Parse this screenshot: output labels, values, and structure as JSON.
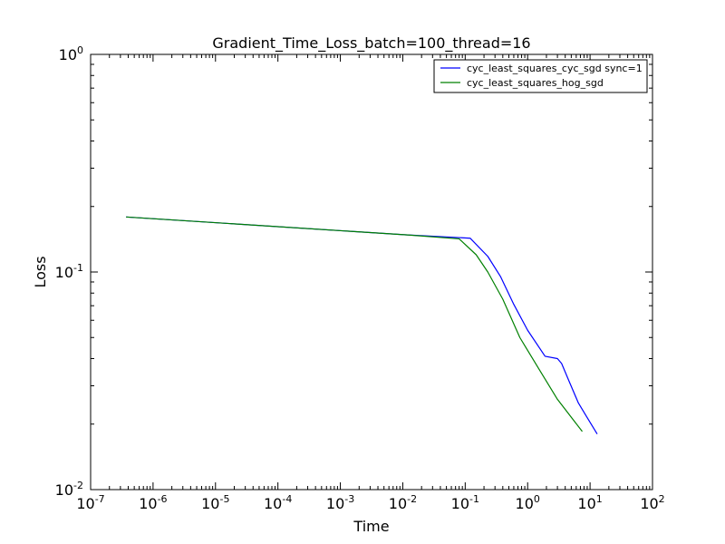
{
  "chart_data": {
    "type": "line",
    "title": "Gradient_Time_Loss_batch=100_thread=16",
    "xlabel": "Time",
    "ylabel": "Loss",
    "xscale": "log",
    "yscale": "log",
    "xlim": [
      1e-07,
      100
    ],
    "ylim": [
      0.01,
      1
    ],
    "grid": false,
    "legend_position": "top-right",
    "x_tick_labels": [
      {
        "value": 1e-07,
        "base": "10",
        "exp": "-7"
      },
      {
        "value": 1e-06,
        "base": "10",
        "exp": "-6"
      },
      {
        "value": 1e-05,
        "base": "10",
        "exp": "-5"
      },
      {
        "value": 0.0001,
        "base": "10",
        "exp": "-4"
      },
      {
        "value": 0.001,
        "base": "10",
        "exp": "-3"
      },
      {
        "value": 0.01,
        "base": "10",
        "exp": "-2"
      },
      {
        "value": 0.1,
        "base": "10",
        "exp": "-1"
      },
      {
        "value": 1,
        "base": "10",
        "exp": "0"
      },
      {
        "value": 10,
        "base": "10",
        "exp": "1"
      },
      {
        "value": 100,
        "base": "10",
        "exp": "2"
      }
    ],
    "y_tick_labels": [
      {
        "value": 0.01,
        "base": "10",
        "exp": "-2"
      },
      {
        "value": 0.1,
        "base": "10",
        "exp": "-1"
      },
      {
        "value": 1,
        "base": "10",
        "exp": "0"
      }
    ],
    "series": [
      {
        "name": "cyc_least_squares_cyc_sgd sync=1",
        "color": "#0000ff",
        "points": [
          [
            3.7e-07,
            0.179
          ],
          [
            0.012,
            0.148
          ],
          [
            0.12,
            0.143
          ],
          [
            0.23,
            0.118
          ],
          [
            0.37,
            0.095
          ],
          [
            0.6,
            0.071
          ],
          [
            1.0,
            0.054
          ],
          [
            1.9,
            0.041
          ],
          [
            3.0,
            0.04
          ],
          [
            3.5,
            0.038
          ],
          [
            4.5,
            0.032
          ],
          [
            6.5,
            0.025
          ],
          [
            8.5,
            0.022
          ],
          [
            13.0,
            0.018
          ]
        ]
      },
      {
        "name": "cyc_least_squares_hog_sgd",
        "color": "#008000",
        "points": [
          [
            3.7e-07,
            0.179
          ],
          [
            0.012,
            0.148
          ],
          [
            0.08,
            0.142
          ],
          [
            0.15,
            0.12
          ],
          [
            0.23,
            0.1
          ],
          [
            0.4,
            0.075
          ],
          [
            0.75,
            0.05
          ],
          [
            1.5,
            0.036
          ],
          [
            3.0,
            0.026
          ],
          [
            7.5,
            0.0185
          ]
        ]
      }
    ]
  }
}
